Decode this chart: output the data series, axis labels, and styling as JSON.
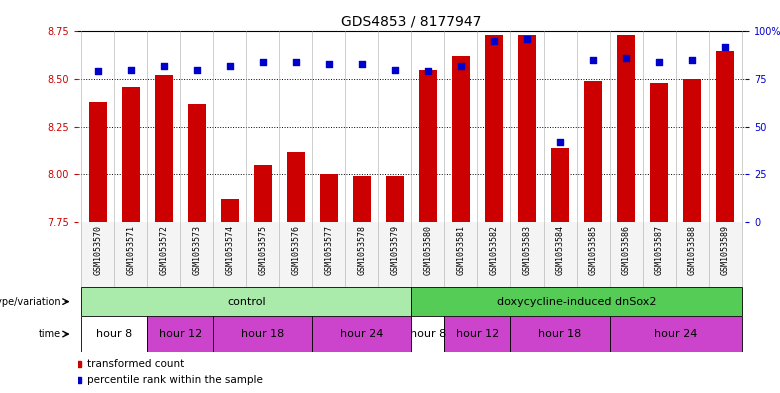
{
  "title": "GDS4853 / 8177947",
  "samples": [
    "GSM1053570",
    "GSM1053571",
    "GSM1053572",
    "GSM1053573",
    "GSM1053574",
    "GSM1053575",
    "GSM1053576",
    "GSM1053577",
    "GSM1053578",
    "GSM1053579",
    "GSM1053580",
    "GSM1053581",
    "GSM1053582",
    "GSM1053583",
    "GSM1053584",
    "GSM1053585",
    "GSM1053586",
    "GSM1053587",
    "GSM1053588",
    "GSM1053589"
  ],
  "transformed_count": [
    8.38,
    8.46,
    8.52,
    8.37,
    7.87,
    8.05,
    8.12,
    8.0,
    7.99,
    7.99,
    8.55,
    8.62,
    8.73,
    8.73,
    8.14,
    8.49,
    8.73,
    8.48,
    8.5,
    8.65
  ],
  "percentile_rank": [
    79,
    80,
    82,
    80,
    82,
    84,
    84,
    83,
    83,
    80,
    79,
    82,
    95,
    96,
    42,
    85,
    86,
    84,
    85,
    92
  ],
  "ylim_left": [
    7.75,
    8.75
  ],
  "ylim_right": [
    0,
    100
  ],
  "yticks_left": [
    7.75,
    8.0,
    8.25,
    8.5,
    8.75
  ],
  "yticks_right": [
    0,
    25,
    50,
    75,
    100
  ],
  "ytick_labels_right": [
    "0",
    "25",
    "50",
    "75",
    "100%"
  ],
  "bar_bottom": 7.75,
  "bar_color": "#cc0000",
  "dot_color": "#0000cc",
  "background_color": "#ffffff",
  "genotype_groups": [
    {
      "label": "control",
      "start": 0,
      "end": 10,
      "color": "#aaeaaa"
    },
    {
      "label": "doxycycline-induced dnSox2",
      "start": 10,
      "end": 20,
      "color": "#55cc55"
    }
  ],
  "time_groups": [
    {
      "label": "hour 8",
      "start": 0,
      "end": 2,
      "color": "#ffffff"
    },
    {
      "label": "hour 12",
      "start": 2,
      "end": 4,
      "color": "#cc44cc"
    },
    {
      "label": "hour 18",
      "start": 4,
      "end": 7,
      "color": "#cc44cc"
    },
    {
      "label": "hour 24",
      "start": 7,
      "end": 10,
      "color": "#cc44cc"
    },
    {
      "label": "hour 8",
      "start": 10,
      "end": 11,
      "color": "#ffffff"
    },
    {
      "label": "hour 12",
      "start": 11,
      "end": 13,
      "color": "#cc44cc"
    },
    {
      "label": "hour 18",
      "start": 13,
      "end": 16,
      "color": "#cc44cc"
    },
    {
      "label": "hour 24",
      "start": 16,
      "end": 20,
      "color": "#cc44cc"
    }
  ],
  "legend_items": [
    {
      "label": "transformed count",
      "color": "#cc0000"
    },
    {
      "label": "percentile rank within the sample",
      "color": "#0000cc"
    }
  ],
  "title_fontsize": 10,
  "tick_fontsize": 7,
  "sample_fontsize": 6,
  "row_label_fontsize": 7,
  "row_content_fontsize": 8
}
